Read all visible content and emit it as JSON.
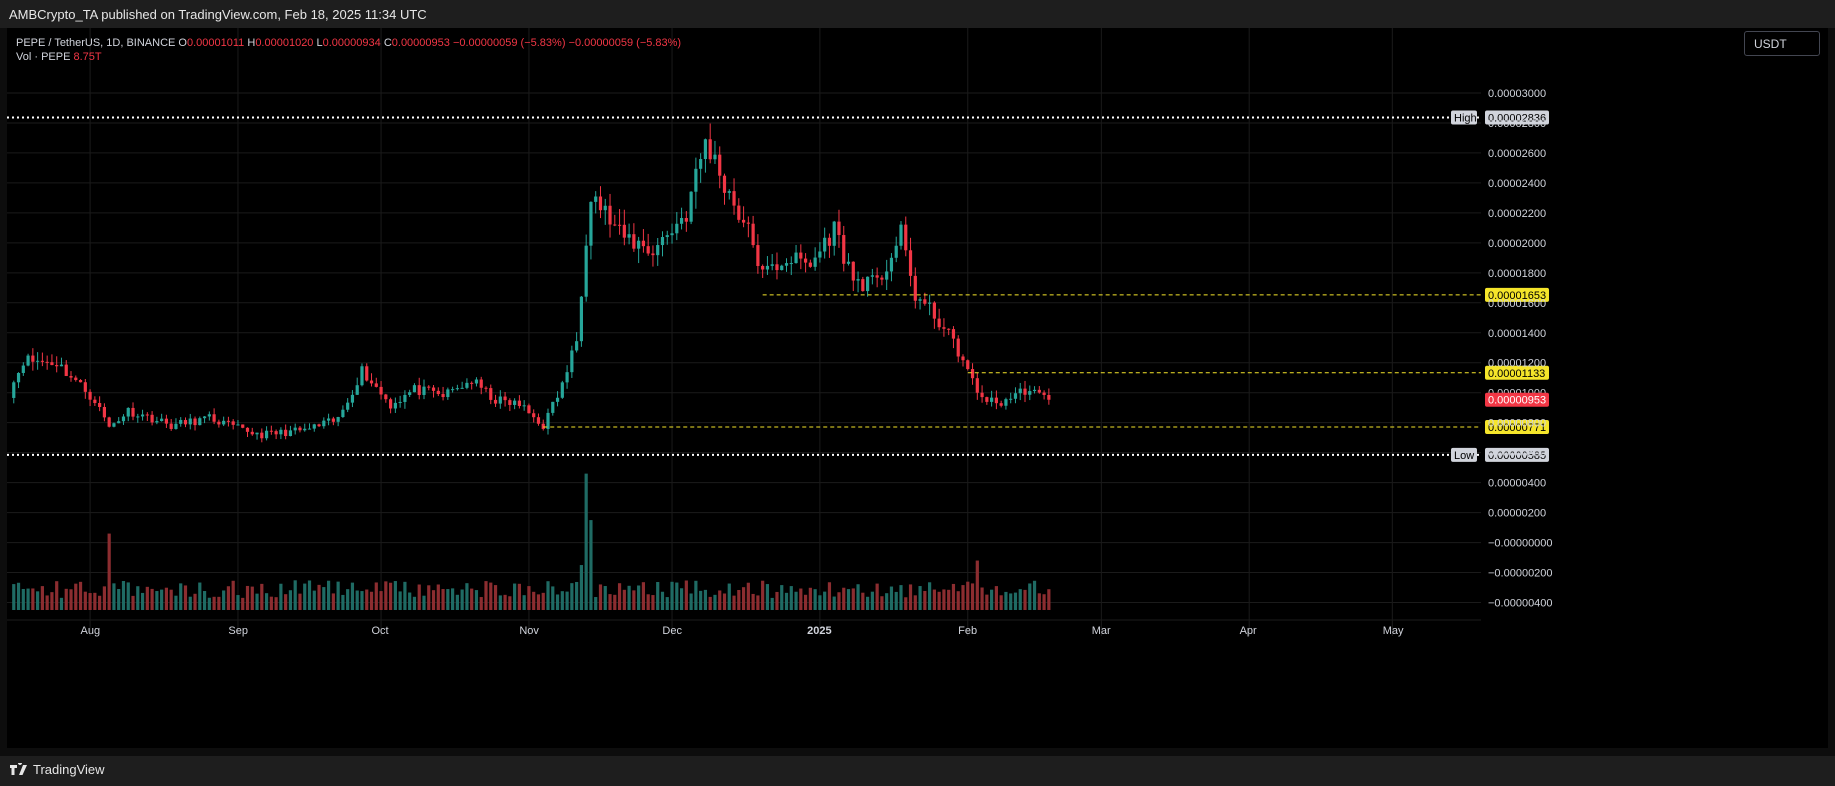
{
  "header": {
    "published": "AMBCrypto_TA published on TradingView.com, Feb 18, 2025 11:34 UTC"
  },
  "legend": {
    "symbol": "PEPE / TetherUS, 1D, BINANCE",
    "o_label": "O",
    "o_value": "0.00001011",
    "h_label": "H",
    "h_value": "0.00001020",
    "l_label": "L",
    "l_value": "0.00000934",
    "c_label": "C",
    "c_value": "0.00000953",
    "change": "−0.00000059 (−5.83%)",
    "change2": "−0.00000059 (−5.83%)",
    "vol_label": "Vol · PEPE",
    "vol_value": "8.75T"
  },
  "currency_button": "USDT",
  "footer": {
    "brand": "TradingView"
  },
  "colors": {
    "up": "#26a69a",
    "down": "#f23645",
    "vol_up": "#1f6b64",
    "vol_down": "#8c2d30",
    "level": "#f5e52a",
    "hilo": "#ffffff",
    "grid": "#1b1b1b",
    "background": "#000000"
  },
  "chart_data": {
    "type": "candlestick",
    "symbol": "PEPE / TetherUS",
    "interval": "1D",
    "exchange": "BINANCE",
    "y_range": [
      -4.5e-06,
      3.12e-05
    ],
    "y_ticks": [
      {
        "v": 3e-05,
        "t": "0.00003000"
      },
      {
        "v": 2.8e-05,
        "t": "0.00002800"
      },
      {
        "v": 2.6e-05,
        "t": "0.00002600"
      },
      {
        "v": 2.4e-05,
        "t": "0.00002400"
      },
      {
        "v": 2.2e-05,
        "t": "0.00002200"
      },
      {
        "v": 2e-05,
        "t": "0.00002000"
      },
      {
        "v": 1.8e-05,
        "t": "0.00001800"
      },
      {
        "v": 1.6e-05,
        "t": "0.00001600"
      },
      {
        "v": 1.4e-05,
        "t": "0.00001400"
      },
      {
        "v": 1.2e-05,
        "t": "0.00001200"
      },
      {
        "v": 1e-05,
        "t": "0.00001000"
      },
      {
        "v": 8e-06,
        "t": "0.00000800"
      },
      {
        "v": 6e-06,
        "t": "0.00000600"
      },
      {
        "v": 4e-06,
        "t": "0.00000400"
      },
      {
        "v": 2e-06,
        "t": "0.00000200"
      },
      {
        "v": 0.0,
        "t": "−0.00000000"
      },
      {
        "v": -2e-06,
        "t": "−0.00000200"
      },
      {
        "v": -4e-06,
        "t": "−0.00000400"
      }
    ],
    "x_labels": [
      "Aug",
      "Sep",
      "Oct",
      "Nov",
      "Dec",
      "2025",
      "Feb",
      "Mar",
      "Apr",
      "May"
    ],
    "hilo_lines": [
      {
        "name": "High",
        "value": 2.836e-05,
        "text": "0.00002836"
      },
      {
        "name": "Low",
        "value": 5.85e-06,
        "text": "0.00000585"
      }
    ],
    "levels": [
      {
        "value": 1.653e-05,
        "text": "0.00001653",
        "from": "2024-12-20"
      },
      {
        "value": 1.133e-05,
        "text": "0.00001133",
        "from": "2025-02-01"
      },
      {
        "value": 7.71e-06,
        "text": "0.00000771",
        "from": "2024-11-04"
      }
    ],
    "last_price": {
      "value": 9.53e-06,
      "text": "0.00000953"
    },
    "anchors": [
      {
        "date": "2024-07-15",
        "close": 1e-05
      },
      {
        "date": "2024-07-18",
        "close": 1.22e-05
      },
      {
        "date": "2024-07-25",
        "close": 1.2e-05
      },
      {
        "date": "2024-07-28",
        "close": 1.11e-05
      },
      {
        "date": "2024-08-02",
        "close": 9.5e-06
      },
      {
        "date": "2024-08-05",
        "close": 7.7e-06
      },
      {
        "date": "2024-08-09",
        "close": 8.8e-06
      },
      {
        "date": "2024-08-14",
        "close": 8.3e-06
      },
      {
        "date": "2024-08-18",
        "close": 7.8e-06
      },
      {
        "date": "2024-08-26",
        "close": 8.3e-06
      },
      {
        "date": "2024-09-02",
        "close": 7.5e-06
      },
      {
        "date": "2024-09-06",
        "close": 7.2e-06
      },
      {
        "date": "2024-09-15",
        "close": 7.5e-06
      },
      {
        "date": "2024-09-22",
        "close": 8.2e-06
      },
      {
        "date": "2024-09-27",
        "close": 1.15e-05
      },
      {
        "date": "2024-10-03",
        "close": 9.2e-06
      },
      {
        "date": "2024-10-08",
        "close": 1.02e-05
      },
      {
        "date": "2024-10-14",
        "close": 9.8e-06
      },
      {
        "date": "2024-10-20",
        "close": 1.08e-05
      },
      {
        "date": "2024-10-25",
        "close": 9.5e-06
      },
      {
        "date": "2024-10-30",
        "close": 9.2e-06
      },
      {
        "date": "2024-11-04",
        "close": 7.8e-06
      },
      {
        "date": "2024-11-08",
        "close": 1.05e-05
      },
      {
        "date": "2024-11-11",
        "close": 1.35e-05
      },
      {
        "date": "2024-11-13",
        "close": 2.05e-05
      },
      {
        "date": "2024-11-14",
        "close": 2.35e-05
      },
      {
        "date": "2024-11-20",
        "close": 2.05e-05
      },
      {
        "date": "2024-11-27",
        "close": 1.95e-05
      },
      {
        "date": "2024-12-04",
        "close": 2.2e-05
      },
      {
        "date": "2024-12-08",
        "close": 2.68e-05
      },
      {
        "date": "2024-12-12",
        "close": 2.4e-05
      },
      {
        "date": "2024-12-18",
        "close": 2e-05
      },
      {
        "date": "2024-12-20",
        "close": 1.78e-05
      },
      {
        "date": "2024-12-25",
        "close": 1.9e-05
      },
      {
        "date": "2024-12-30",
        "close": 1.85e-05
      },
      {
        "date": "2025-01-04",
        "close": 2.1e-05
      },
      {
        "date": "2025-01-08",
        "close": 1.75e-05
      },
      {
        "date": "2025-01-13",
        "close": 1.72e-05
      },
      {
        "date": "2025-01-18",
        "close": 2.05e-05
      },
      {
        "date": "2025-01-21",
        "close": 1.65e-05
      },
      {
        "date": "2025-01-26",
        "close": 1.48e-05
      },
      {
        "date": "2025-01-30",
        "close": 1.28e-05
      },
      {
        "date": "2025-02-03",
        "close": 1e-05
      },
      {
        "date": "2025-02-07",
        "close": 9.2e-06
      },
      {
        "date": "2025-02-13",
        "close": 1.02e-05
      },
      {
        "date": "2025-02-18",
        "close": 9.53e-06
      }
    ],
    "volume_spikes": [
      {
        "date": "2024-08-05",
        "value": 5.1e-06
      },
      {
        "date": "2024-11-13",
        "value": 9.1e-06
      },
      {
        "date": "2024-11-14",
        "value": 6e-06
      },
      {
        "date": "2024-11-12",
        "value": 3e-06
      },
      {
        "date": "2025-02-03",
        "value": 3.3e-06
      }
    ]
  }
}
